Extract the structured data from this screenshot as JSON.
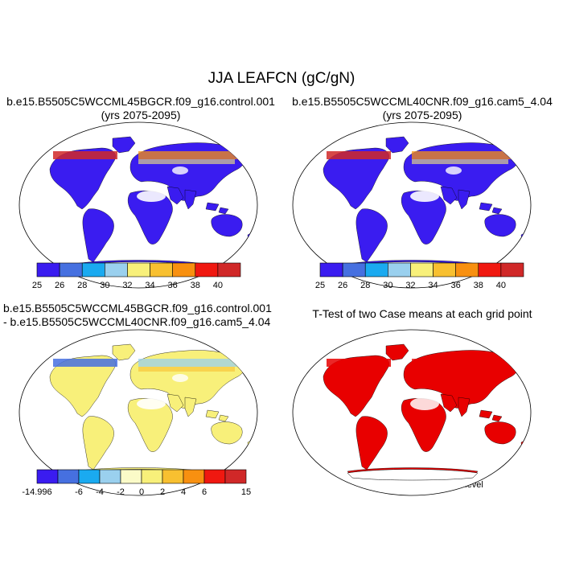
{
  "title": "JJA LEAFCN (gC/gN)",
  "panels": [
    {
      "id": "p1",
      "title_lines": [
        "b.e15.B5505C5WCCML45BGCR.f09_g16.control.001",
        "(yrs 2075-2095)"
      ]
    },
    {
      "id": "p2",
      "title_lines": [
        "b.e15.B5505C5WCCML40CNR.f09_g16.cam5_4.04",
        "(yrs 2075-2095)"
      ]
    },
    {
      "id": "p3",
      "title_lines": [
        "b.e15.B5505C5WCCML45BGCR.f09_g16.control.001",
        "- b.e15.B5505C5WCCML40CNR.f09_g16.cam5_4.04"
      ]
    },
    {
      "id": "p4",
      "title_lines": [
        "T-Test of two Case means at each grid point"
      ],
      "note": "Cells are significant at 0.1 level"
    }
  ],
  "colorbars": {
    "absolute": {
      "labels": [
        "25",
        "26",
        "28",
        "30",
        "32",
        "34",
        "36",
        "38",
        "40"
      ],
      "colors": [
        "#3a1cf0",
        "#4670e0",
        "#1aaaf0",
        "#9ad0ee",
        "#f8f07a",
        "#f8c030",
        "#f89010",
        "#f01810",
        "#d02828"
      ]
    },
    "difference": {
      "labels": [
        "-14.996",
        "-6",
        "-4",
        "-2",
        "0",
        "2",
        "4",
        "6",
        "15"
      ],
      "colors": [
        "#3a1cf0",
        "#4670e0",
        "#1aaaf0",
        "#9ad0ee",
        "#fbfbc8",
        "#f8f07a",
        "#f8c030",
        "#f89010",
        "#f01810",
        "#d02828"
      ]
    }
  },
  "significance_color": "#e80000"
}
